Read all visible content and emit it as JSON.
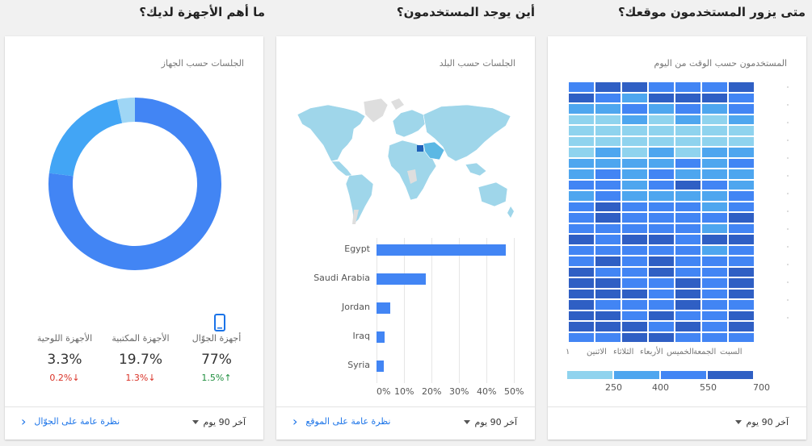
{
  "sections": {
    "time": "متى يزور المستخدمون موقعك؟",
    "location": "أين يوجد المستخدمون؟",
    "devices": "ما أهم الأجهزة لديك؟"
  },
  "time_card": {
    "title": "المستخدمون حسب الوقت من اليوم",
    "days": [
      "السبت",
      "الجمعة",
      "الخميس",
      "الأربعاء",
      "الثلاثاء",
      "الاثنين",
      "١"
    ],
    "legend_ticks": [
      "250",
      "400",
      "550",
      "700"
    ],
    "legend_colors": [
      "#8fd3ee",
      "#4ea6ef",
      "#4285f4",
      "#2f5fc4"
    ]
  },
  "location_card": {
    "title": "الجلسات حسب البلد"
  },
  "devices_card": {
    "title": "الجلسات حسب الجهاز",
    "items": [
      {
        "label": "أجهزة الجوّال",
        "pct": "77%",
        "change": "1.5%↑",
        "dir": "up"
      },
      {
        "label": "الأجهزة المكتبية",
        "pct": "19.7%",
        "change": "1.3%↓",
        "dir": "down"
      },
      {
        "label": "الأجهزة اللوحية",
        "pct": "3.3%",
        "change": "0.2%↓",
        "dir": "down"
      }
    ],
    "icon": "smartphone-icon"
  },
  "footers": {
    "period": "آخر 90 يوم",
    "location_link": "نظرة عامة على الموقع",
    "devices_link": "نظرة عامة على الجوّال"
  },
  "chart_data": [
    {
      "type": "bar",
      "orientation": "horizontal",
      "categories": [
        "Egypt",
        "Saudi Arabia",
        "Jordan",
        "Iraq",
        "Syria"
      ],
      "values": [
        47,
        18,
        5,
        3,
        2.5
      ],
      "xlim": [
        0,
        50
      ],
      "xticks": [
        "0%",
        "10%",
        "20%",
        "30%",
        "40%",
        "50%"
      ],
      "grid": true
    },
    {
      "type": "pie",
      "donut": true,
      "categories": [
        "أجهزة الجوّال",
        "الأجهزة المكتبية",
        "الأجهزة اللوحية"
      ],
      "values": [
        77,
        19.7,
        3.3
      ],
      "colors": [
        "#4285f4",
        "#42a5f5",
        "#9fd6f5"
      ]
    },
    {
      "type": "heatmap",
      "rows": 24,
      "cols": 7,
      "color_ticks": [
        "250",
        "400",
        "550",
        "700"
      ]
    }
  ]
}
